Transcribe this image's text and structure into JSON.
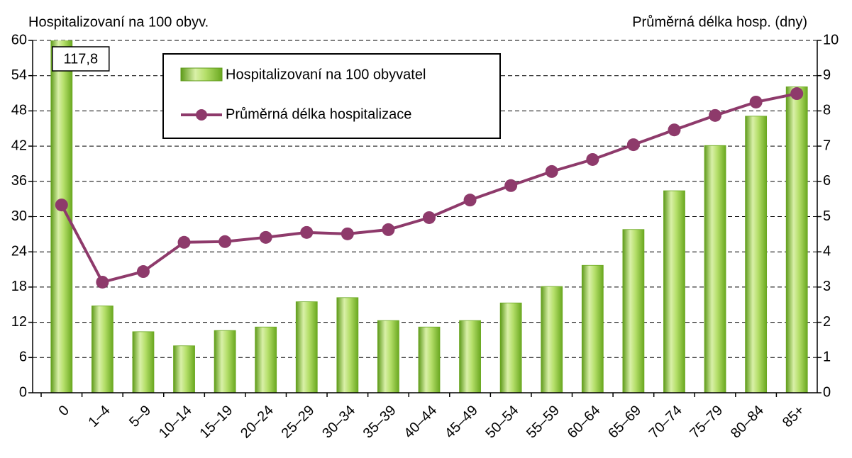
{
  "chart_data": {
    "type": "bar-line",
    "y_label": "Hospitalizovaní na 100 obyv.",
    "y2_label": "Průměrná délka hosp. (dny)",
    "categories": [
      "0",
      "1–4",
      "5–9",
      "10–14",
      "15–19",
      "20–24",
      "25–29",
      "30–34",
      "35–39",
      "40–44",
      "45–49",
      "50–54",
      "55–59",
      "60–64",
      "65–69",
      "70–74",
      "75–79",
      "80–84",
      "85+"
    ],
    "series": [
      {
        "name": "Hospitalizovaní na 100 obyvatel",
        "type": "bar",
        "color": "#8cc63f",
        "values": [
          117.8,
          14.8,
          10.4,
          8.0,
          10.6,
          11.2,
          15.5,
          16.2,
          12.3,
          11.2,
          12.3,
          15.3,
          18.1,
          21.7,
          27.8,
          34.4,
          42.1,
          47.1,
          52.1
        ],
        "value_labels": [
          "117,8",
          null,
          null,
          null,
          null,
          null,
          null,
          null,
          null,
          null,
          null,
          null,
          null,
          null,
          null,
          null,
          null,
          null,
          null
        ]
      },
      {
        "name": "Průměrná délka hospitalizace",
        "type": "line",
        "axis": "y2",
        "color": "#8e3a6b",
        "values": [
          5.33,
          3.14,
          3.44,
          4.27,
          4.29,
          4.41,
          4.55,
          4.51,
          4.63,
          4.97,
          5.47,
          5.88,
          6.28,
          6.62,
          7.04,
          7.46,
          7.87,
          8.25,
          8.49
        ]
      }
    ],
    "ylim": [
      0,
      60
    ],
    "yticks": [
      0,
      6,
      12,
      18,
      24,
      30,
      36,
      42,
      48,
      54,
      60
    ],
    "y2lim": [
      0,
      10
    ],
    "y2ticks": [
      0,
      1,
      2,
      3,
      4,
      5,
      6,
      7,
      8,
      9,
      10
    ],
    "grid": true
  }
}
